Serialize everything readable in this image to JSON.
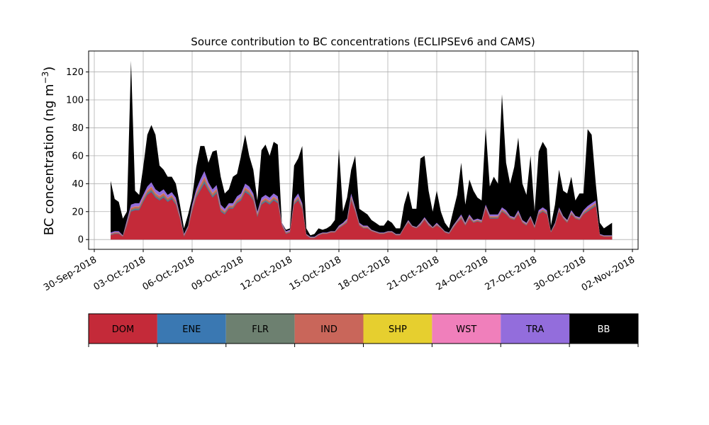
{
  "chart_data": {
    "type": "area",
    "stacked": true,
    "title": "Source contribution to BC concentrations (ECLIPSEv6 and CAMS)",
    "ylabel": "BC concentration (ng m",
    "ylabel_exp": "−3",
    "ylabel_close": ")",
    "ylim": [
      -7,
      135
    ],
    "yticks": [
      0,
      20,
      40,
      60,
      80,
      100,
      120
    ],
    "xlim": [
      "2018-09-30",
      "2018-11-02"
    ],
    "xticks": [
      "30-Sep-2018",
      "03-Oct-2018",
      "06-Oct-2018",
      "09-Oct-2018",
      "12-Oct-2018",
      "15-Oct-2018",
      "18-Oct-2018",
      "21-Oct-2018",
      "24-Oct-2018",
      "27-Oct-2018",
      "30-Oct-2018",
      "02-Nov-2018"
    ],
    "grid": true,
    "colors": {
      "DOM": "#c42a39",
      "ENE": "#3a78b2",
      "FLR": "#6d8070",
      "IND": "#c9665a",
      "SHP": "#e6cf2f",
      "WST": "#f07fbb",
      "TRA": "#936ddc",
      "BB": "#000000"
    },
    "legend": {
      "placement": "bottom-colorbar",
      "labels": [
        "DOM",
        "ENE",
        "FLR",
        "IND",
        "SHP",
        "WST",
        "TRA",
        "BB"
      ],
      "text_colors": [
        "#000000",
        "#000000",
        "#000000",
        "#000000",
        "#000000",
        "#000000",
        "#000000",
        "#ffffff"
      ]
    },
    "daily": [
      {
        "date": "2018-10-01",
        "total": [
          42,
          29,
          27,
          15
        ],
        "dom": [
          3,
          4,
          4,
          2
        ],
        "tra": [
          2,
          2,
          2,
          1
        ]
      },
      {
        "date": "2018-10-02",
        "total": [
          20,
          128,
          35,
          32
        ],
        "dom": [
          10,
          20,
          21,
          21
        ],
        "tra": [
          4,
          5,
          5,
          5
        ]
      },
      {
        "date": "2018-10-03",
        "total": [
          52,
          75,
          82,
          75
        ],
        "dom": [
          27,
          32,
          34,
          30
        ],
        "tra": [
          5,
          6,
          7,
          6
        ]
      },
      {
        "date": "2018-10-04",
        "total": [
          53,
          50,
          45,
          45
        ],
        "dom": [
          28,
          30,
          27,
          29
        ],
        "tra": [
          6,
          6,
          5,
          5
        ]
      },
      {
        "date": "2018-10-05",
        "total": [
          40,
          25,
          8,
          18
        ],
        "dom": [
          25,
          15,
          2,
          8
        ],
        "tra": [
          5,
          3,
          2,
          2
        ]
      },
      {
        "date": "2018-10-06",
        "total": [
          30,
          52,
          67,
          67
        ],
        "dom": [
          20,
          30,
          35,
          40
        ],
        "tra": [
          5,
          6,
          8,
          9
        ]
      },
      {
        "date": "2018-10-07",
        "total": [
          55,
          63,
          64,
          45
        ],
        "dom": [
          35,
          30,
          33,
          20
        ],
        "tra": [
          6,
          6,
          6,
          5
        ]
      },
      {
        "date": "2018-10-08",
        "total": [
          33,
          36,
          45,
          47
        ],
        "dom": [
          18,
          22,
          22,
          26
        ],
        "tra": [
          4,
          4,
          4,
          5
        ]
      },
      {
        "date": "2018-10-09",
        "total": [
          60,
          75,
          60,
          50
        ],
        "dom": [
          28,
          34,
          32,
          28
        ],
        "tra": [
          5,
          6,
          6,
          5
        ]
      },
      {
        "date": "2018-10-10",
        "total": [
          28,
          64,
          68,
          60
        ],
        "dom": [
          16,
          25,
          27,
          25
        ],
        "tra": [
          4,
          5,
          5,
          5
        ]
      },
      {
        "date": "2018-10-11",
        "total": [
          70,
          68,
          12,
          7
        ],
        "dom": [
          28,
          26,
          10,
          4
        ],
        "tra": [
          5,
          5,
          3,
          2
        ]
      },
      {
        "date": "2018-10-12",
        "total": [
          8,
          53,
          58,
          67
        ],
        "dom": [
          5,
          25,
          28,
          22
        ],
        "tra": [
          2,
          4,
          5,
          4
        ]
      },
      {
        "date": "2018-10-13",
        "total": [
          8,
          3,
          4,
          8
        ],
        "dom": [
          3,
          1,
          1,
          3
        ],
        "tra": [
          1,
          1,
          1,
          1
        ]
      },
      {
        "date": "2018-10-14",
        "total": [
          7,
          8,
          10,
          14
        ],
        "dom": [
          4,
          4,
          5,
          5
        ],
        "tra": [
          1,
          1,
          1,
          1
        ]
      },
      {
        "date": "2018-10-15",
        "total": [
          65,
          20,
          30,
          50
        ],
        "dom": [
          8,
          10,
          12,
          28
        ],
        "tra": [
          2,
          2,
          3,
          5
        ]
      },
      {
        "date": "2018-10-16",
        "total": [
          60,
          22,
          20,
          18
        ],
        "dom": [
          20,
          10,
          8,
          8
        ],
        "tra": [
          3,
          2,
          2,
          2
        ]
      },
      {
        "date": "2018-10-17",
        "total": [
          14,
          12,
          10,
          10
        ],
        "dom": [
          6,
          5,
          4,
          4
        ],
        "tra": [
          1,
          1,
          1,
          1
        ]
      },
      {
        "date": "2018-10-18",
        "total": [
          14,
          12,
          8,
          8
        ],
        "dom": [
          5,
          5,
          3,
          3
        ],
        "tra": [
          1,
          1,
          1,
          1
        ]
      },
      {
        "date": "2018-10-19",
        "total": [
          25,
          35,
          22,
          22
        ],
        "dom": [
          8,
          12,
          9,
          8
        ],
        "tra": [
          1,
          2,
          1,
          1
        ]
      },
      {
        "date": "2018-10-20",
        "total": [
          58,
          60,
          35,
          20
        ],
        "dom": [
          10,
          14,
          10,
          8
        ],
        "tra": [
          2,
          2,
          2,
          1
        ]
      },
      {
        "date": "2018-10-21",
        "total": [
          35,
          20,
          12,
          8
        ],
        "dom": [
          10,
          8,
          5,
          4
        ],
        "tra": [
          2,
          1,
          1,
          1
        ]
      },
      {
        "date": "2018-10-22",
        "total": [
          20,
          32,
          55,
          25
        ],
        "dom": [
          8,
          12,
          15,
          10
        ],
        "tra": [
          2,
          2,
          3,
          2
        ]
      },
      {
        "date": "2018-10-23",
        "total": [
          43,
          35,
          30,
          28
        ],
        "dom": [
          15,
          12,
          13,
          12
        ],
        "tra": [
          3,
          2,
          2,
          2
        ]
      },
      {
        "date": "2018-10-24",
        "total": [
          80,
          38,
          45,
          40
        ],
        "dom": [
          22,
          15,
          15,
          15
        ],
        "tra": [
          3,
          3,
          3,
          3
        ]
      },
      {
        "date": "2018-10-25",
        "total": [
          104,
          55,
          40,
          52
        ],
        "dom": [
          20,
          18,
          15,
          14
        ],
        "tra": [
          3,
          3,
          2,
          2
        ]
      },
      {
        "date": "2018-10-26",
        "total": [
          73,
          40,
          32,
          60
        ],
        "dom": [
          18,
          12,
          10,
          15
        ],
        "tra": [
          3,
          2,
          2,
          2
        ]
      },
      {
        "date": "2018-10-27",
        "total": [
          20,
          63,
          70,
          65
        ],
        "dom": [
          8,
          18,
          20,
          18
        ],
        "tra": [
          2,
          3,
          3,
          3
        ]
      },
      {
        "date": "2018-10-28",
        "total": [
          10,
          25,
          50,
          35
        ],
        "dom": [
          5,
          10,
          20,
          15
        ],
        "tra": [
          1,
          2,
          3,
          2
        ]
      },
      {
        "date": "2018-10-29",
        "total": [
          33,
          45,
          28,
          33
        ],
        "dom": [
          12,
          18,
          15,
          14
        ],
        "tra": [
          2,
          3,
          2,
          2
        ]
      },
      {
        "date": "2018-10-30",
        "total": [
          33,
          79,
          75,
          40
        ],
        "dom": [
          18,
          20,
          22,
          24
        ],
        "tra": [
          3,
          4,
          4,
          4
        ]
      },
      {
        "date": "2018-10-31",
        "total": [
          12,
          8,
          10,
          12
        ],
        "dom": [
          3,
          2,
          2,
          2
        ],
        "tra": [
          1,
          1,
          1,
          1
        ]
      }
    ]
  }
}
